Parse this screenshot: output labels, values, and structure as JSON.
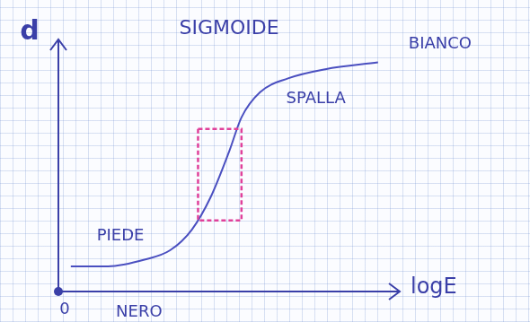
{
  "chart_data": {
    "type": "line",
    "title": "SIGMOIDE",
    "x_label": "logE",
    "y_label": "d",
    "x": [
      0.4,
      1.6,
      2.8,
      3.6,
      4.3,
      4.9,
      5.5,
      5.9,
      6.5,
      7.4,
      8.6,
      10.3
    ],
    "values": [
      1.1,
      1.1,
      1.4,
      1.8,
      2.7,
      4.1,
      6.1,
      7.6,
      8.7,
      9.3,
      9.7,
      10.0
    ],
    "color": "#4a4fc0",
    "xlim": [
      0,
      11
    ],
    "ylim": [
      0,
      11
    ],
    "tick_labels": false,
    "grid": false,
    "marker": "none",
    "annotations": [
      {
        "text": "BIANCO",
        "x": 12.3,
        "y": 10.8
      },
      {
        "text": "SPALLA",
        "x": 8.3,
        "y": 8.4
      },
      {
        "text": "PIEDE",
        "x": 2.0,
        "y": 2.4
      },
      {
        "text": "0",
        "x": 0.2,
        "y": -0.8
      },
      {
        "text": "NERO",
        "x": 2.6,
        "y": -0.9
      }
    ],
    "region": {
      "x": [
        4.5,
        5.9
      ],
      "y": [
        3.1,
        7.1
      ],
      "color": "#e0409a",
      "line_style": "dashed"
    }
  }
}
